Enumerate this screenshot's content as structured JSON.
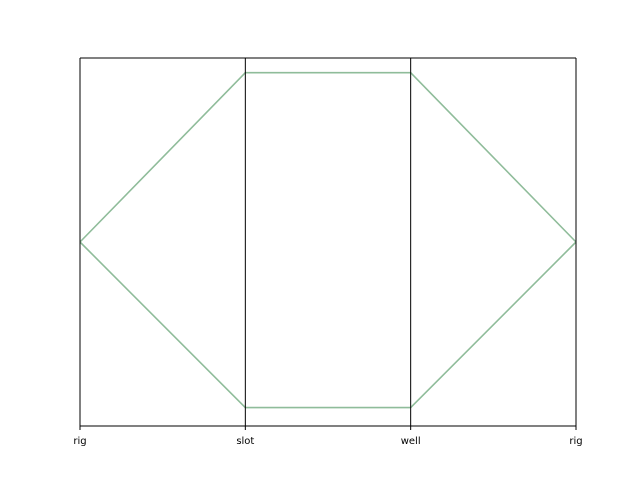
{
  "chart_data": {
    "type": "parallel_coordinates",
    "title": "",
    "axes": [
      "rig",
      "slot",
      "well",
      "rig"
    ],
    "xlabel": "",
    "ylabel": "",
    "ylim": [
      0,
      1
    ],
    "grid": false,
    "legend": "none",
    "series": [
      {
        "values": [
          0.5,
          0.96,
          0.96,
          0.5
        ]
      },
      {
        "values": [
          0.5,
          0.05,
          0.05,
          0.5
        ]
      }
    ],
    "colors": {
      "line": "#8fbc9a",
      "axis": "#000000"
    }
  }
}
